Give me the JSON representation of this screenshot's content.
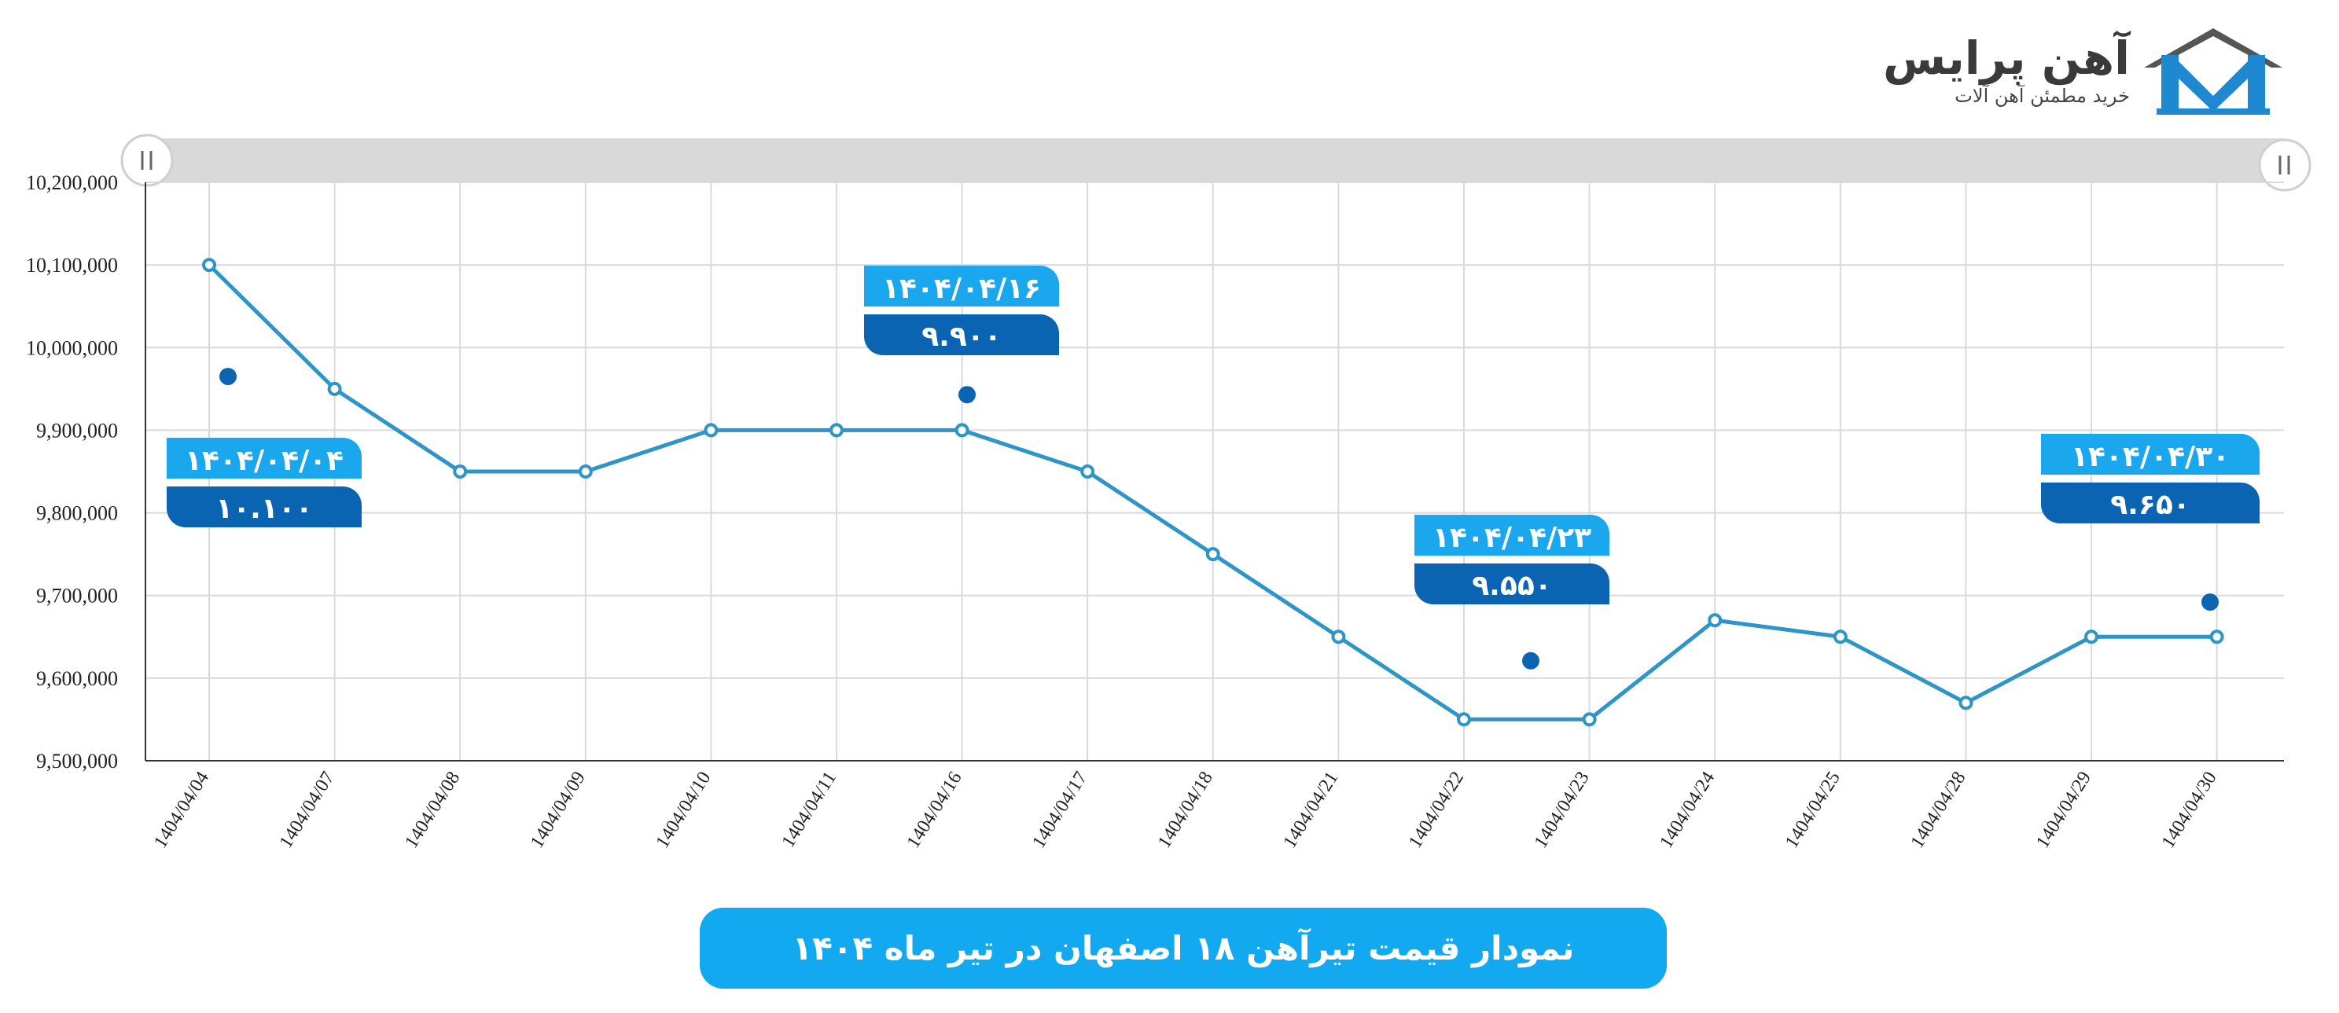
{
  "brand": {
    "name": "آهن پرایس",
    "tagline": "خرید مطمئن آهن آلات"
  },
  "banner_title": "نمودار قیمت تیرآهن ۱۸ اصفهان در تیر ماه ۱۴۰۴",
  "colors": {
    "line": "#2e95c7",
    "callout_top": "#1aa7ee",
    "callout_bottom": "#0a64b2",
    "dot": "#0a64b2",
    "banner": "#12a9f0",
    "grid": "#d9d9d9",
    "scrollbar": "#d9d9d9"
  },
  "icons": {
    "logo": "house-logo-icon",
    "scroll_left": "scroll-handle-left-icon",
    "scroll_right": "scroll-handle-right-icon"
  },
  "chart_data": {
    "type": "line",
    "title": "نمودار قیمت تیرآهن ۱۸ اصفهان در تیر ماه ۱۴۰۴",
    "xlabel": "",
    "ylabel": "",
    "grid": true,
    "categories": [
      "1404/04/04",
      "1404/04/07",
      "1404/04/08",
      "1404/04/09",
      "1404/04/10",
      "1404/04/11",
      "1404/04/16",
      "1404/04/17",
      "1404/04/18",
      "1404/04/21",
      "1404/04/22",
      "1404/04/23",
      "1404/04/24",
      "1404/04/25",
      "1404/04/28",
      "1404/04/29",
      "1404/04/30"
    ],
    "values": [
      10100000,
      9950000,
      9850000,
      9850000,
      9900000,
      9900000,
      9900000,
      9850000,
      9750000,
      9650000,
      9550000,
      9550000,
      9670000,
      9650000,
      9570000,
      9650000,
      9650000
    ],
    "ylim": [
      9500000,
      10200000
    ],
    "yticks": [
      9500000,
      9600000,
      9700000,
      9800000,
      9900000,
      10000000,
      10100000,
      10200000
    ],
    "ytick_labels": [
      "9,500,000",
      "9,600,000",
      "9,700,000",
      "9,800,000",
      "9,900,000",
      "10,000,000",
      "10,100,000",
      "10,200,000"
    ],
    "annotations": [
      {
        "date_label": "۱۴۰۴/۰۴/۰۴",
        "price_label": "۱۰.۱۰۰",
        "category_index": 0,
        "value": 9965000
      },
      {
        "date_label": "۱۴۰۴/۰۴/۱۶",
        "price_label": "۹.۹۰۰",
        "category_index": 6,
        "value": 9943000
      },
      {
        "date_label": "۱۴۰۴/۰۴/۲۳",
        "price_label": "۹.۵۵۰",
        "category_index": 10.5,
        "value": 9621000
      },
      {
        "date_label": "۱۴۰۴/۰۴/۳۰",
        "price_label": "۹.۶۵۰",
        "category_index": 16,
        "value": 9692000
      }
    ]
  }
}
